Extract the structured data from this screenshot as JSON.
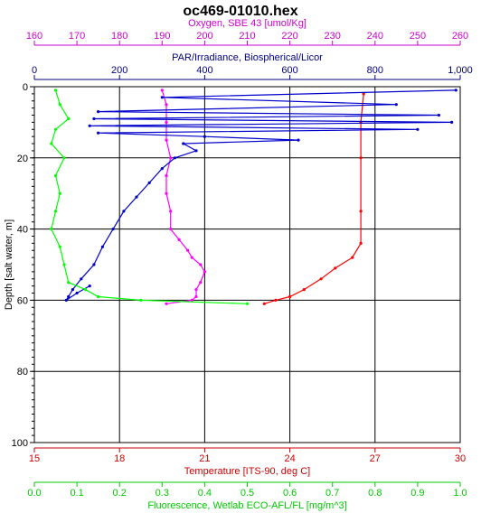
{
  "chart_data": {
    "type": "line",
    "title": "oc469-01010.hex",
    "grid": true,
    "y_axis": {
      "label": "Depth [salt water, m]",
      "range": [
        0,
        100
      ],
      "ticks": [
        "0",
        "20",
        "40",
        "60",
        "80",
        "100"
      ],
      "inverted": true,
      "color": "#000000"
    },
    "x_axes": [
      {
        "id": "oxygen",
        "label": "Oxygen, SBE 43 [umol/Kg]",
        "range": [
          160,
          260
        ],
        "ticks": [
          "160",
          "170",
          "180",
          "190",
          "200",
          "210",
          "220",
          "230",
          "240",
          "250",
          "260"
        ],
        "color": "#cc00cc",
        "position": "top-outer"
      },
      {
        "id": "par",
        "label": "PAR/Irradiance, Biospherical/Licor",
        "range": [
          0,
          1000
        ],
        "ticks": [
          "0",
          "200",
          "400",
          "600",
          "800",
          "1,000"
        ],
        "color": "#000080",
        "position": "top-inner"
      },
      {
        "id": "temperature",
        "label": "Temperature [ITS-90, deg C]",
        "range": [
          15,
          30
        ],
        "ticks": [
          "15",
          "18",
          "21",
          "24",
          "27",
          "30"
        ],
        "color": "#cc0000",
        "position": "bottom-inner"
      },
      {
        "id": "fluorescence",
        "label": "Fluorescence, Wetlab ECO-AFL/FL [mg/m^3]",
        "range": [
          0,
          1
        ],
        "ticks": [
          "0.0",
          "0.1",
          "0.2",
          "0.3",
          "0.4",
          "0.5",
          "0.6",
          "0.7",
          "0.8",
          "0.9",
          "1.0"
        ],
        "color": "#00cc00",
        "position": "bottom-outer"
      }
    ],
    "series": [
      {
        "axis": "temperature",
        "color": "#ff0000",
        "points": [
          [
            26.6,
            2
          ],
          [
            26.5,
            10
          ],
          [
            26.5,
            20
          ],
          [
            26.5,
            35
          ],
          [
            26.5,
            44
          ],
          [
            26.2,
            48
          ],
          [
            25.6,
            51
          ],
          [
            25.1,
            54
          ],
          [
            24.5,
            57
          ],
          [
            24.0,
            59
          ],
          [
            23.5,
            60
          ],
          [
            23.1,
            61
          ]
        ]
      },
      {
        "axis": "oxygen",
        "color": "#ff00ff",
        "points": [
          [
            190,
            1
          ],
          [
            191,
            5
          ],
          [
            191,
            10
          ],
          [
            191,
            15
          ],
          [
            192,
            20
          ],
          [
            191,
            25
          ],
          [
            191,
            30
          ],
          [
            192,
            35
          ],
          [
            192,
            40
          ],
          [
            194,
            43
          ],
          [
            196,
            46
          ],
          [
            197,
            48
          ],
          [
            199,
            50
          ],
          [
            200,
            52
          ],
          [
            199,
            55
          ],
          [
            198,
            57
          ],
          [
            198,
            59
          ],
          [
            197,
            60
          ],
          [
            191,
            61
          ]
        ]
      },
      {
        "axis": "par",
        "color": "#0000cc",
        "points": [
          [
            990,
            1
          ],
          [
            300,
            3
          ],
          [
            850,
            5
          ],
          [
            150,
            7
          ],
          [
            950,
            8
          ],
          [
            140,
            9
          ],
          [
            980,
            10
          ],
          [
            130,
            11
          ],
          [
            900,
            12
          ],
          [
            150,
            13
          ],
          [
            400,
            14
          ],
          [
            620,
            15
          ],
          [
            350,
            16
          ],
          [
            380,
            18
          ],
          [
            330,
            20
          ],
          [
            300,
            23
          ],
          [
            270,
            27
          ],
          [
            240,
            31
          ],
          [
            210,
            35
          ],
          [
            185,
            40
          ],
          [
            160,
            45
          ],
          [
            140,
            50
          ],
          [
            110,
            54
          ],
          [
            90,
            57
          ],
          [
            80,
            59
          ],
          [
            75,
            60
          ],
          [
            100,
            58
          ],
          [
            130,
            56
          ]
        ]
      },
      {
        "axis": "fluorescence",
        "color": "#00ff00",
        "points": [
          [
            0.05,
            1
          ],
          [
            0.06,
            5
          ],
          [
            0.08,
            9
          ],
          [
            0.05,
            12
          ],
          [
            0.04,
            16
          ],
          [
            0.07,
            20
          ],
          [
            0.05,
            25
          ],
          [
            0.06,
            30
          ],
          [
            0.05,
            35
          ],
          [
            0.04,
            40
          ],
          [
            0.06,
            45
          ],
          [
            0.07,
            50
          ],
          [
            0.08,
            55
          ],
          [
            0.12,
            57
          ],
          [
            0.15,
            59
          ],
          [
            0.25,
            60
          ],
          [
            0.5,
            61
          ]
        ]
      }
    ]
  }
}
